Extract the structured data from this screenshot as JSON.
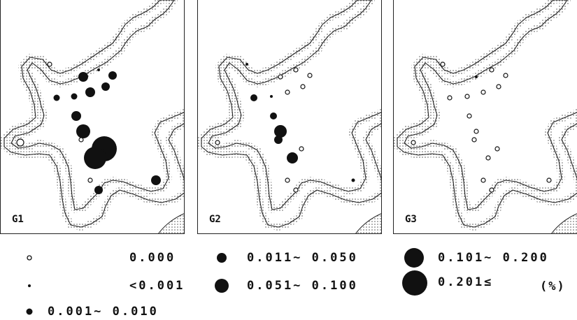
{
  "panels": [
    {
      "label": "G1"
    },
    {
      "label": "G2"
    },
    {
      "label": "G3"
    }
  ],
  "legend": [
    {
      "symbol": "open-circle-icon",
      "text": "0.000"
    },
    {
      "symbol": "small-dot-icon",
      "text": "<0.001"
    },
    {
      "symbol": "filled-circle-icon",
      "text": "0.001~ 0.010"
    },
    {
      "symbol": "filled-circle-icon",
      "text": "0.011~ 0.050"
    },
    {
      "symbol": "filled-circle-icon",
      "text": "0.051~ 0.100"
    },
    {
      "symbol": "filled-circle-icon",
      "text": "0.101~ 0.200"
    },
    {
      "symbol": "filled-circle-icon",
      "text": "0.201≤"
    }
  ],
  "unit": "(%)",
  "colors": {
    "ink": "#111111",
    "coast": "#888888"
  }
}
